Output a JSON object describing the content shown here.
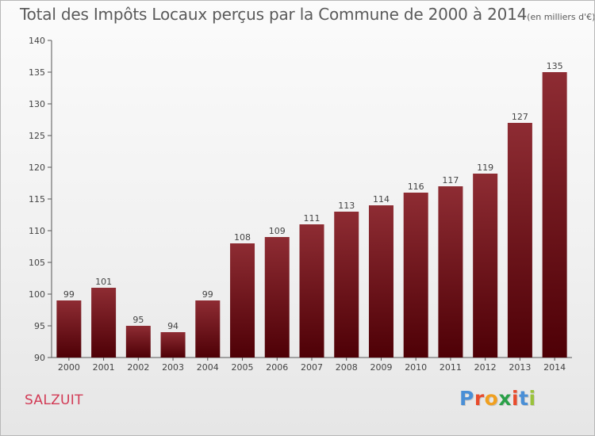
{
  "title": "Total des Impôts Locaux perçus par la Commune de 2000 à 2014",
  "unit": "(en milliers d'€)",
  "commune": "SALZUIT",
  "logo": {
    "text": "Proxiti",
    "colors": [
      "#4a8fd6",
      "#e84b2c",
      "#f0a020",
      "#2aa048",
      "#e84b2c",
      "#4a8fd6",
      "#9ac23c"
    ]
  },
  "chart_data": {
    "type": "bar",
    "title": "Total des Impôts Locaux perçus par la Commune de 2000 à 2014",
    "xlabel": "",
    "ylabel": "",
    "ylim": [
      90,
      140
    ],
    "yticks": [
      90,
      95,
      100,
      105,
      110,
      115,
      120,
      125,
      130,
      135,
      140
    ],
    "categories": [
      "2000",
      "2001",
      "2002",
      "2003",
      "2004",
      "2005",
      "2006",
      "2007",
      "2008",
      "2009",
      "2010",
      "2011",
      "2012",
      "2013",
      "2014"
    ],
    "values": [
      99,
      101,
      95,
      94,
      99,
      108,
      109,
      111,
      113,
      114,
      116,
      117,
      119,
      127,
      135
    ],
    "bar_color": "#7a1a22",
    "grid": false
  }
}
